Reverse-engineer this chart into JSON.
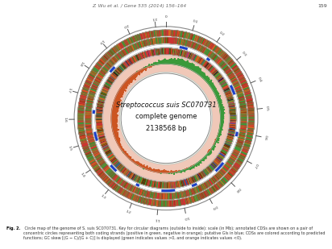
{
  "title_line1": "Streptococcus suis SC070731",
  "title_line2": "complete genome",
  "title_line3": "2138568 bp",
  "header_text": "Z. Wu et al. / Gene 535 (2014) 156–164",
  "header_page": "159",
  "caption_bold": "Fig. 2.",
  "caption_rest": " Circle map of the genome of S. suis SC070731. Key for circular diagrams (outside to inside): scale (in Mb); annotated CDSs are shown on a pair of concentric circles representing both coding strands (positive in green, negative in orange); putative GIs in blue; CDSs are colored according to predicted functions; GC skew [(G − C)/(G + C)] is displayed (green indicates values >0, and orange indicates values <0).",
  "genome_size_mb": 2.138568,
  "bg_color": "#ffffff",
  "colors": {
    "green_cds": "#3a9a3a",
    "red_cds": "#cc3333",
    "orange_cds": "#d96820",
    "blue_gi": "#1a3fcc",
    "dark_orange": "#c85010",
    "brown": "#4a3000",
    "gc_pos": "#3a9a3a",
    "gc_neg": "#cc5522",
    "salmon_bg": "#f0c8b8",
    "inner_green": "#e8f0e0"
  }
}
